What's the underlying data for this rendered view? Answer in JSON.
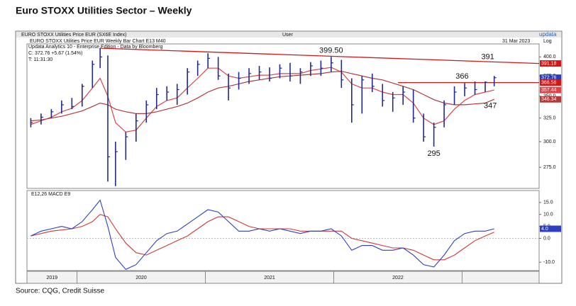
{
  "page_title": "Euro STOXX Utilities Sector – Weekly",
  "header": {
    "index": "EURO STOXX Utilities Price EUR (SX6E Index)",
    "user": "User",
    "brand": "updata",
    "chart_name": "EURO STOXX Utilities Price EUR Weekly Bar Chart   E13   M40",
    "date": "31 Mar 2023",
    "scale": "Log",
    "edition": "Updata Analytics 10 - Enterprise Edition - Data by Bloomberg",
    "close_line": "C: 372.76 +5.67 (1.54%)",
    "time_line": "T: 11:31:30"
  },
  "source": "Source: CQG, Credit Suisse",
  "chart_data": [
    {
      "type": "ohlc",
      "log_scale": true,
      "xlim": [
        2019.61,
        2023.6
      ],
      "ylim": [
        256,
        418
      ],
      "xticks": [
        {
          "value": 2019,
          "label": "2019"
        },
        {
          "value": 2020,
          "label": "2020"
        },
        {
          "value": 2021,
          "label": "2021"
        },
        {
          "value": 2022,
          "label": "2022"
        }
      ],
      "yticks": [
        {
          "value": 400,
          "label": "400.0"
        },
        {
          "value": 375,
          "label": "375.0"
        },
        {
          "value": 350,
          "label": "350.0"
        },
        {
          "value": 325,
          "label": "325.0"
        },
        {
          "value": 300,
          "label": "300.0"
        },
        {
          "value": 275,
          "label": "275.0"
        }
      ],
      "x": [
        2019.64,
        2019.72,
        2019.8,
        2019.88,
        2019.96,
        2020.04,
        2020.12,
        2020.18,
        2020.24,
        2020.3,
        2020.38,
        2020.46,
        2020.54,
        2020.62,
        2020.7,
        2020.78,
        2020.86,
        2020.94,
        2021.02,
        2021.1,
        2021.18,
        2021.26,
        2021.34,
        2021.42,
        2021.5,
        2021.58,
        2021.66,
        2021.74,
        2021.82,
        2021.9,
        2021.98,
        2022.06,
        2022.14,
        2022.22,
        2022.3,
        2022.38,
        2022.46,
        2022.54,
        2022.62,
        2022.7,
        2022.78,
        2022.86,
        2022.94,
        2023.02,
        2023.1,
        2023.18,
        2023.25
      ],
      "high": [
        325,
        330,
        335,
        345,
        348,
        365,
        395,
        412,
        402,
        300,
        310,
        330,
        345,
        360,
        362,
        365,
        385,
        395,
        405,
        400,
        378,
        380,
        385,
        388,
        386,
        390,
        392,
        385,
        393,
        395,
        400,
        396,
        372,
        375,
        378,
        365,
        355,
        362,
        358,
        330,
        320,
        345,
        362,
        366,
        368,
        368,
        375
      ],
      "low": [
        315,
        318,
        325,
        330,
        335,
        338,
        360,
        385,
        262,
        258,
        282,
        300,
        320,
        335,
        345,
        340,
        352,
        375,
        385,
        370,
        345,
        358,
        365,
        370,
        368,
        372,
        368,
        365,
        375,
        375,
        380,
        360,
        320,
        330,
        355,
        338,
        332,
        340,
        320,
        300,
        295,
        315,
        340,
        350,
        352,
        355,
        362
      ],
      "close": [
        320,
        326,
        332,
        340,
        338,
        362,
        390,
        400,
        285,
        290,
        305,
        322,
        340,
        352,
        355,
        358,
        380,
        390,
        398,
        375,
        360,
        372,
        378,
        380,
        372,
        385,
        375,
        380,
        388,
        385,
        392,
        370,
        340,
        370,
        362,
        345,
        348,
        355,
        325,
        305,
        315,
        340,
        355,
        360,
        358,
        367,
        372.76
      ],
      "price_color": "#1f2a8c",
      "series": [
        {
          "name": "E13",
          "color": "#d9454a",
          "values": [
            318,
            322,
            326,
            332,
            336,
            345,
            360,
            372,
            350,
            320,
            310,
            312,
            325,
            338,
            345,
            348,
            360,
            372,
            385,
            385,
            375,
            372,
            374,
            376,
            376,
            378,
            378,
            378,
            382,
            384,
            386,
            380,
            365,
            360,
            360,
            355,
            352,
            352,
            342,
            325,
            318,
            322,
            335,
            345,
            352,
            355,
            357.44
          ]
        },
        {
          "name": "M40",
          "color": "#b03a3a",
          "values": [
            322,
            323,
            325,
            327,
            330,
            333,
            338,
            342,
            340,
            335,
            332,
            330,
            330,
            332,
            335,
            338,
            342,
            348,
            355,
            360,
            362,
            365,
            368,
            370,
            372,
            374,
            375,
            376,
            377,
            378,
            380,
            381,
            378,
            375,
            372,
            370,
            366,
            362,
            358,
            352,
            346,
            342,
            340,
            340,
            341,
            342,
            346.34
          ]
        }
      ],
      "trendline": {
        "x": [
          2020.18,
          2023.6
        ],
        "y": [
          412,
          391.18
        ],
        "color": "#d01818"
      },
      "hline": {
        "y": 366.56,
        "x0": 2022.5,
        "color": "#d01818"
      },
      "end_labels": [
        {
          "value": 391.18,
          "label": "391.18",
          "color": "#d01818"
        },
        {
          "value": 372.76,
          "label": "372.76",
          "color": "#1f3fbf"
        },
        {
          "value": 366.56,
          "label": "366.56",
          "color": "#d01818"
        },
        {
          "value": 357.44,
          "label": "357.44",
          "color": "#d9454a"
        },
        {
          "value": 346.34,
          "label": "346.34",
          "color": "#b03a3a"
        }
      ],
      "annotations": [
        {
          "label": "399.50",
          "x": 2021.98,
          "value": 399.5,
          "side": "above"
        },
        {
          "label": "391",
          "x": 2023.2,
          "value": 391,
          "side": "above"
        },
        {
          "label": "366",
          "x": 2023.0,
          "value": 366,
          "side": "above"
        },
        {
          "label": "347",
          "x": 2023.22,
          "value": 347,
          "side": "below"
        },
        {
          "label": "295",
          "x": 2022.78,
          "value": 295,
          "side": "below"
        }
      ]
    },
    {
      "type": "line",
      "title": "E12,26 MACD   E9",
      "xlim": [
        2019.61,
        2023.6
      ],
      "ylim": [
        -13.5,
        20
      ],
      "yticks": [
        {
          "value": 15,
          "label": "15.0"
        },
        {
          "value": 10,
          "label": "10.0"
        },
        {
          "value": 5,
          "label": "5.0"
        },
        {
          "value": 0,
          "label": "0.0"
        },
        {
          "value": -10,
          "label": "-10.0"
        }
      ],
      "x": [
        2019.64,
        2019.72,
        2019.8,
        2019.88,
        2019.96,
        2020.04,
        2020.12,
        2020.18,
        2020.24,
        2020.3,
        2020.38,
        2020.46,
        2020.54,
        2020.62,
        2020.7,
        2020.78,
        2020.86,
        2020.94,
        2021.02,
        2021.1,
        2021.18,
        2021.26,
        2021.34,
        2021.42,
        2021.5,
        2021.58,
        2021.66,
        2021.74,
        2021.82,
        2021.9,
        2021.98,
        2022.06,
        2022.14,
        2022.22,
        2022.3,
        2022.38,
        2022.46,
        2022.54,
        2022.62,
        2022.7,
        2022.78,
        2022.86,
        2022.94,
        2023.02,
        2023.1,
        2023.18,
        2023.25
      ],
      "series": [
        {
          "color": "#2f3fbf",
          "values": [
            1,
            3,
            4,
            5,
            4,
            7,
            12,
            16,
            5,
            -8,
            -13,
            -11,
            -6,
            -1,
            2,
            3,
            6,
            9,
            12,
            11,
            7,
            3,
            3,
            4,
            3,
            4,
            3,
            2,
            3,
            3,
            4,
            1,
            -5,
            -3,
            -3,
            -5,
            -5,
            -4,
            -7,
            -11,
            -12,
            -7,
            -1,
            2,
            3,
            3,
            4.0
          ],
          "end_label": "4.0"
        },
        {
          "color": "#cc3a3a",
          "values": [
            1,
            2,
            3,
            3.5,
            4,
            5,
            7,
            10,
            9,
            4,
            -2,
            -6,
            -7,
            -5,
            -3,
            -1,
            1,
            4,
            7,
            9,
            9,
            7,
            5,
            4,
            4,
            4,
            4,
            3,
            3,
            3,
            3,
            3,
            0,
            -1,
            -2,
            -3,
            -4,
            -4,
            -5,
            -7,
            -9,
            -9,
            -7,
            -4,
            -1,
            1,
            2.6
          ]
        }
      ]
    }
  ]
}
